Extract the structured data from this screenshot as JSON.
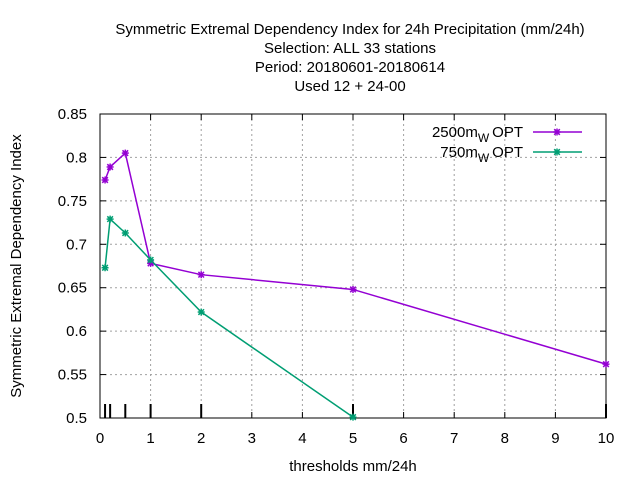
{
  "chart_data": {
    "type": "line",
    "title_lines": [
      "Symmetric Extremal Dependency Index  for 24h Precipitation (mm/24h)",
      "Selection: ALL     33 stations",
      "Period: 20180601-20180614",
      "Used  12 + 24-00"
    ],
    "xlabel": "thresholds mm/24h",
    "ylabel": "Symmetric Extremal Dependency Index",
    "xlim": [
      0,
      10
    ],
    "ylim": [
      0.5,
      0.85
    ],
    "xticks": [
      0,
      1,
      2,
      3,
      4,
      5,
      6,
      7,
      8,
      9,
      10
    ],
    "yticks": [
      0.5,
      0.55,
      0.6,
      0.65,
      0.7,
      0.75,
      0.8,
      0.85
    ],
    "ytick_labels": [
      "0.5",
      "0.55",
      "0.6",
      "0.65",
      "0.7",
      "0.75",
      "0.8",
      "0.85"
    ],
    "threshold_markers": [
      0.1,
      0.2,
      0.5,
      1,
      2,
      5,
      10
    ],
    "grid": true,
    "legend_position": "top-right",
    "series": [
      {
        "name": "2500m",
        "name_sub": "W",
        "name_suffix": "OPT",
        "color": "#9400D3",
        "x": [
          0.1,
          0.2,
          0.5,
          1,
          2,
          5,
          10
        ],
        "y": [
          0.774,
          0.789,
          0.805,
          0.678,
          0.665,
          0.648,
          0.562
        ]
      },
      {
        "name": "750m",
        "name_sub": "W",
        "name_suffix": "OPT",
        "color": "#009E73",
        "x": [
          0.1,
          0.2,
          0.5,
          1,
          2,
          5
        ],
        "y": [
          0.673,
          0.729,
          0.713,
          0.682,
          0.622,
          0.501
        ]
      }
    ]
  }
}
